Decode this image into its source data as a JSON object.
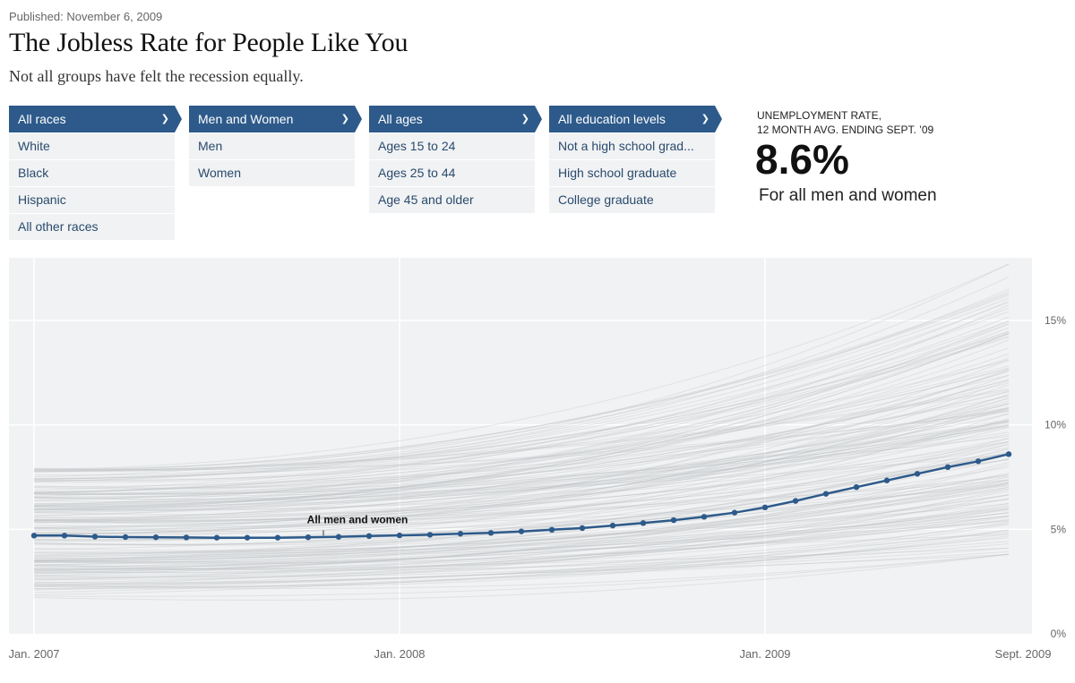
{
  "published": "Published: November 6, 2009",
  "title": "The Jobless Rate for People Like You",
  "subtitle": "Not all groups have felt the recession equally.",
  "menus": [
    {
      "selected": "All races",
      "items": [
        "White",
        "Black",
        "Hispanic",
        "All other races"
      ]
    },
    {
      "selected": "Men and Women",
      "items": [
        "Men",
        "Women"
      ]
    },
    {
      "selected": "All ages",
      "items": [
        "Ages 15 to 24",
        "Ages 25 to 44",
        "Age 45 and older"
      ]
    },
    {
      "selected": "All education levels",
      "items": [
        "Not a high school grad...",
        "High school graduate",
        "College graduate"
      ]
    }
  ],
  "chevron": "❯",
  "stat": {
    "label_line1": "UNEMPLOYMENT RATE,",
    "label_line2": "12 MONTH AVG. ENDING SEPT. ’09",
    "value": "8.6%",
    "caption": "For all men and women"
  },
  "colors": {
    "accent": "#2d5a8a",
    "menu_bg": "#f0f2f4",
    "plot_bg": "#f0f2f3",
    "highlight_line": "#2d5a8a"
  },
  "chart_data": {
    "type": "line",
    "x_labels": [
      "Jan. 2007",
      "Jan. 2008",
      "Jan. 2009",
      "Sept. 2009"
    ],
    "x_label_months": [
      0,
      12,
      24,
      32
    ],
    "y_ticks": [
      0,
      5,
      10,
      15
    ],
    "y_tick_labels": [
      "0%",
      "5%",
      "10%",
      "15%"
    ],
    "ylim": [
      0,
      18
    ],
    "xlim_months": [
      0,
      32
    ],
    "grid": true,
    "highlighted_series": {
      "label": "All men and women",
      "label_at_month": 9.5,
      "x_months": [
        0,
        1,
        2,
        3,
        4,
        5,
        6,
        7,
        8,
        9,
        10,
        11,
        12,
        13,
        14,
        15,
        16,
        17,
        18,
        19,
        20,
        21,
        22,
        23,
        24,
        25,
        26,
        27,
        28,
        29,
        30,
        31,
        32
      ],
      "values": [
        4.7,
        4.7,
        4.65,
        4.63,
        4.62,
        4.61,
        4.6,
        4.6,
        4.6,
        4.62,
        4.64,
        4.68,
        4.71,
        4.74,
        4.79,
        4.83,
        4.9,
        4.98,
        5.06,
        5.18,
        5.3,
        5.44,
        5.6,
        5.8,
        6.05,
        6.36,
        6.7,
        7.02,
        7.34,
        7.66,
        7.98,
        8.26,
        8.6
      ]
    },
    "background_lines": {
      "count": 170,
      "start_range": [
        1.7,
        8.0
      ],
      "end_range": [
        3.8,
        17.7
      ]
    }
  }
}
